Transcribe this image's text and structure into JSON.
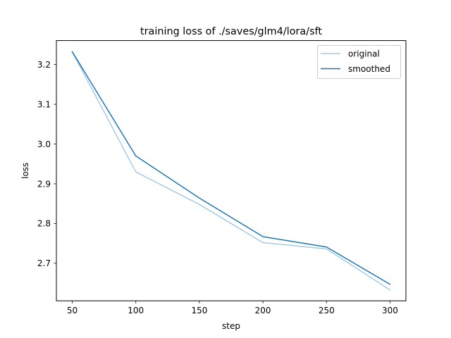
{
  "chart_data": {
    "type": "line",
    "title": "training loss of ./saves/glm4/lora/sft",
    "xlabel": "step",
    "ylabel": "loss",
    "x": [
      50,
      100,
      150,
      200,
      250,
      300
    ],
    "xlim": [
      37.5,
      312.5
    ],
    "ylim": [
      2.6055,
      3.2603
    ],
    "xticks": [
      "50",
      "100",
      "150",
      "200",
      "250",
      "300"
    ],
    "yticks": [
      "2.7",
      "2.8",
      "2.9",
      "3.0",
      "3.1",
      "3.2"
    ],
    "grid": false,
    "legend_position": "upper right",
    "series": [
      {
        "name": "original",
        "color": "#a6cbe3",
        "values": [
          3.232,
          2.93,
          2.848,
          2.752,
          2.736,
          2.633
        ]
      },
      {
        "name": "smoothed",
        "color": "#1f77b4",
        "values": [
          3.232,
          2.97,
          2.864,
          2.767,
          2.741,
          2.647
        ]
      }
    ]
  }
}
